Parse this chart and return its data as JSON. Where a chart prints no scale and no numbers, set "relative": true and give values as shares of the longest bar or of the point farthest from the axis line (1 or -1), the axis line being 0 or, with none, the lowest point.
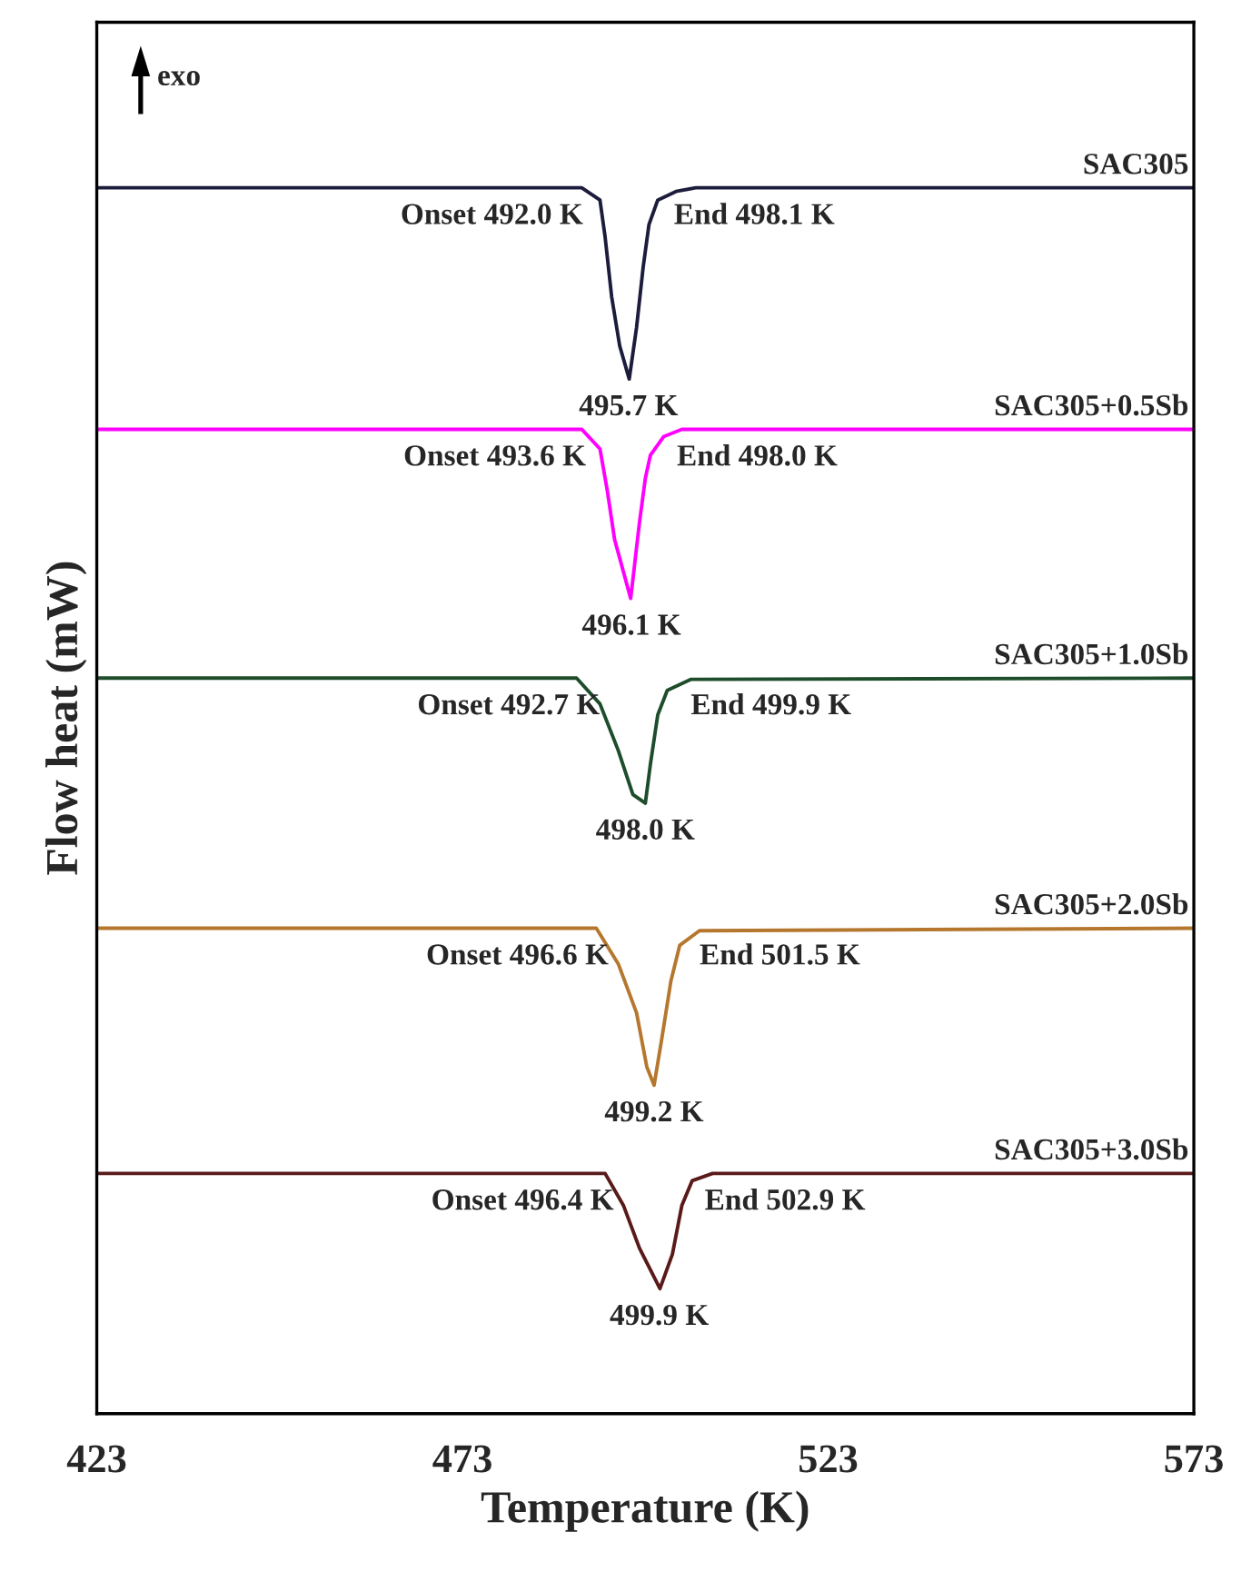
{
  "chart_data": {
    "type": "line",
    "relative": true,
    "xlabel": "Temperature (K)",
    "ylabel": "Flow heat (mW)",
    "xlim": [
      423,
      573
    ],
    "xticks": [
      423,
      473,
      523,
      573
    ],
    "grid": false,
    "legend": false,
    "line_style": "solid",
    "marker": "none",
    "series": [
      {
        "name": "SAC305",
        "color": "#1c1c3c",
        "x": [
          423,
          489.3,
          491.8,
          492.5,
          493.4,
          494.5,
          495.8,
          496.8,
          497.7,
          498.5,
          499.7,
          502.2,
          504.9,
          573
        ],
        "values": [
          1,
          1,
          0.99,
          0.96,
          0.911,
          0.871,
          0.844,
          0.886,
          0.935,
          0.97,
          0.99,
          0.997,
          1,
          1
        ]
      },
      {
        "name": "SAC305+0.5Sb",
        "color": "#ff00ff",
        "x": [
          423,
          489.3,
          491.8,
          492.8,
          493.8,
          496.0,
          497.2,
          498.0,
          498.7,
          500.5,
          503.0,
          573
        ],
        "values": [
          0.803,
          0.803,
          0.787,
          0.753,
          0.713,
          0.665,
          0.727,
          0.763,
          0.782,
          0.797,
          0.803,
          0.803
        ]
      },
      {
        "name": "SAC305+1.0Sb",
        "color": "#1e4d2b",
        "x": [
          423,
          488.6,
          491.8,
          494.3,
          496.3,
          498.0,
          498.7,
          499.7,
          501.0,
          504.2,
          573
        ],
        "values": [
          0.6,
          0.6,
          0.579,
          0.541,
          0.505,
          0.498,
          0.53,
          0.57,
          0.59,
          0.599,
          0.6
        ]
      },
      {
        "name": "SAC305+2.0Sb",
        "color": "#b5772e",
        "x": [
          423,
          491.3,
          494.3,
          496.8,
          498.2,
          499.2,
          500.2,
          501.5,
          502.7,
          505.4,
          573
        ],
        "values": [
          0.396,
          0.396,
          0.367,
          0.327,
          0.283,
          0.268,
          0.304,
          0.353,
          0.382,
          0.394,
          0.396
        ]
      },
      {
        "name": "SAC305+3.0Sb",
        "color": "#5a1a1a",
        "x": [
          423,
          492.5,
          495.0,
          497.2,
          500.0,
          501.7,
          503.0,
          504.4,
          507.2,
          573
        ],
        "values": [
          0.196,
          0.196,
          0.17,
          0.135,
          0.102,
          0.13,
          0.17,
          0.19,
          0.196,
          0.196
        ]
      }
    ],
    "annotations": [
      "exo",
      "Onset 492.0 K",
      "End 498.1 K",
      {
        "text": "495.7 K",
        "x": 495.7,
        "y": 0.844
      },
      "Onset 493.6 K",
      "End 498.0 K",
      {
        "text": "496.1 K",
        "x": 496.1,
        "y": 0.665
      },
      "Onset 492.7 K",
      "End 499.9 K",
      {
        "text": "498.0 K",
        "x": 498.0,
        "y": 0.498
      },
      "Onset 496.6 K",
      "End 501.5 K",
      {
        "text": "499.2 K",
        "x": 499.2,
        "y": 0.268
      },
      "Onset 496.4 K",
      "End 502.9 K",
      {
        "text": "499.9 K",
        "x": 499.9,
        "y": 0.102
      }
    ]
  }
}
